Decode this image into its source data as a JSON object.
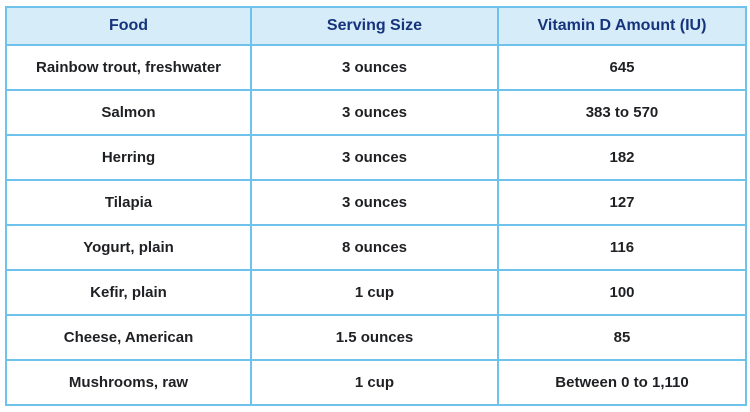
{
  "table": {
    "columns": [
      {
        "label": "Food"
      },
      {
        "label": "Serving Size"
      },
      {
        "label": "Vitamin D Amount (IU)"
      }
    ],
    "rows": [
      {
        "food": "Rainbow trout, freshwater",
        "serving": "3 ounces",
        "amount": "645"
      },
      {
        "food": "Salmon",
        "serving": "3 ounces",
        "amount": "383 to 570"
      },
      {
        "food": "Herring",
        "serving": "3 ounces",
        "amount": "182"
      },
      {
        "food": "Tilapia",
        "serving": "3 ounces",
        "amount": "127"
      },
      {
        "food": "Yogurt, plain",
        "serving": "8 ounces",
        "amount": "116"
      },
      {
        "food": "Kefir, plain",
        "serving": "1 cup",
        "amount": "100"
      },
      {
        "food": "Cheese, American",
        "serving": "1.5 ounces",
        "amount": "85"
      },
      {
        "food": "Mushrooms, raw",
        "serving": "1 cup",
        "amount": "Between 0 to 1,110"
      }
    ]
  },
  "colors": {
    "header_bg": "#d6ecf9",
    "header_text": "#16347c",
    "body_text": "#1f2023",
    "border_outer": "#4f9fce",
    "border_inner": "#6fc2ec",
    "page_bg": "#ffffff"
  },
  "chart_data": {
    "type": "table",
    "title": "",
    "columns": [
      "Food",
      "Serving Size",
      "Vitamin D Amount (IU)"
    ],
    "rows": [
      [
        "Rainbow trout, freshwater",
        "3 ounces",
        "645"
      ],
      [
        "Salmon",
        "3 ounces",
        "383 to 570"
      ],
      [
        "Herring",
        "3 ounces",
        "182"
      ],
      [
        "Tilapia",
        "3 ounces",
        "127"
      ],
      [
        "Yogurt, plain",
        "8 ounces",
        "116"
      ],
      [
        "Kefir, plain",
        "1 cup",
        "100"
      ],
      [
        "Cheese, American",
        "1.5 ounces",
        "85"
      ],
      [
        "Mushrooms, raw",
        "1 cup",
        "Between 0 to 1,110"
      ]
    ]
  }
}
